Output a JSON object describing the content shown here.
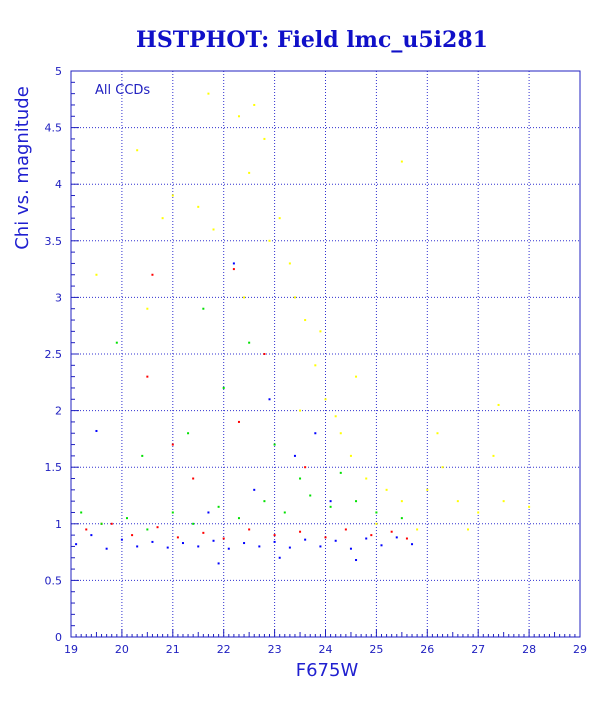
{
  "chart_data": {
    "type": "scatter",
    "title": "HSTPHOT: Field lmc_u5i281",
    "xlabel": "F675W",
    "ylabel": "Chi vs. magnitude",
    "annotation": "All CCDs",
    "xlim": [
      19,
      29
    ],
    "ylim": [
      0,
      5
    ],
    "x_ticks": [
      "19",
      "20",
      "21",
      "22",
      "23",
      "24",
      "25",
      "26",
      "27",
      "28",
      "29"
    ],
    "y_ticks": [
      "0",
      "0.5",
      "1",
      "1.5",
      "2",
      "2.5",
      "3",
      "3.5",
      "4",
      "4.5",
      "5"
    ],
    "grid": true,
    "series": [
      {
        "color": "#0000ff",
        "points": [
          [
            19.1,
            0.82
          ],
          [
            19.4,
            0.9
          ],
          [
            19.7,
            0.78
          ],
          [
            20.0,
            0.86
          ],
          [
            20.3,
            0.8
          ],
          [
            20.6,
            0.84
          ],
          [
            20.9,
            0.79
          ],
          [
            21.2,
            0.83
          ],
          [
            21.5,
            0.8
          ],
          [
            21.8,
            0.85
          ],
          [
            22.1,
            0.78
          ],
          [
            22.4,
            0.83
          ],
          [
            22.7,
            0.8
          ],
          [
            23.0,
            0.84
          ],
          [
            23.3,
            0.79
          ],
          [
            23.6,
            0.86
          ],
          [
            23.9,
            0.8
          ],
          [
            24.2,
            0.85
          ],
          [
            24.5,
            0.78
          ],
          [
            24.8,
            0.87
          ],
          [
            25.1,
            0.81
          ],
          [
            25.4,
            0.88
          ],
          [
            25.7,
            0.82
          ],
          [
            21.7,
            1.1
          ],
          [
            22.6,
            1.3
          ],
          [
            23.4,
            1.6
          ],
          [
            24.1,
            1.2
          ],
          [
            22.9,
            2.1
          ],
          [
            23.8,
            1.8
          ],
          [
            19.5,
            1.82
          ],
          [
            22.2,
            3.3
          ],
          [
            21.9,
            0.65
          ],
          [
            23.1,
            0.7
          ],
          [
            24.6,
            0.68
          ]
        ]
      },
      {
        "color": "#ff0000",
        "points": [
          [
            19.3,
            0.95
          ],
          [
            19.8,
            1.0
          ],
          [
            20.2,
            0.9
          ],
          [
            20.7,
            0.97
          ],
          [
            21.1,
            0.88
          ],
          [
            21.6,
            0.92
          ],
          [
            22.0,
            0.87
          ],
          [
            22.5,
            0.95
          ],
          [
            23.0,
            0.9
          ],
          [
            23.5,
            0.93
          ],
          [
            24.0,
            0.88
          ],
          [
            24.4,
            0.95
          ],
          [
            24.9,
            0.9
          ],
          [
            25.3,
            0.93
          ],
          [
            25.6,
            0.87
          ],
          [
            21.4,
            1.4
          ],
          [
            22.3,
            1.9
          ],
          [
            22.8,
            2.5
          ],
          [
            20.5,
            2.3
          ],
          [
            21.0,
            1.7
          ],
          [
            23.6,
            1.5
          ],
          [
            20.6,
            3.2
          ],
          [
            19.6,
            1.0
          ],
          [
            22.2,
            3.25
          ]
        ]
      },
      {
        "color": "#00e000",
        "points": [
          [
            19.2,
            1.1
          ],
          [
            19.6,
            1.0
          ],
          [
            20.1,
            1.05
          ],
          [
            20.5,
            0.95
          ],
          [
            21.0,
            1.1
          ],
          [
            21.4,
            1.0
          ],
          [
            21.9,
            1.15
          ],
          [
            22.3,
            1.05
          ],
          [
            22.8,
            1.2
          ],
          [
            23.2,
            1.1
          ],
          [
            23.7,
            1.25
          ],
          [
            24.1,
            1.15
          ],
          [
            24.6,
            1.2
          ],
          [
            25.0,
            1.1
          ],
          [
            25.5,
            1.05
          ],
          [
            21.3,
            1.8
          ],
          [
            22.0,
            2.2
          ],
          [
            23.0,
            1.7
          ],
          [
            20.4,
            1.6
          ],
          [
            24.3,
            1.45
          ],
          [
            19.9,
            2.6
          ],
          [
            21.6,
            2.9
          ],
          [
            23.5,
            1.4
          ],
          [
            22.5,
            2.6
          ]
        ]
      },
      {
        "color": "#ffff00",
        "points": [
          [
            22.6,
            4.7
          ],
          [
            22.8,
            4.4
          ],
          [
            22.3,
            4.6
          ],
          [
            22.5,
            4.1
          ],
          [
            23.1,
            3.7
          ],
          [
            23.3,
            3.3
          ],
          [
            23.4,
            3.0
          ],
          [
            22.9,
            3.5
          ],
          [
            23.6,
            2.8
          ],
          [
            23.8,
            2.4
          ],
          [
            24.0,
            2.1
          ],
          [
            24.3,
            1.8
          ],
          [
            24.5,
            1.6
          ],
          [
            24.8,
            1.4
          ],
          [
            25.2,
            1.3
          ],
          [
            25.5,
            1.2
          ],
          [
            26.0,
            1.3
          ],
          [
            26.3,
            1.5
          ],
          [
            26.6,
            1.2
          ],
          [
            27.0,
            1.1
          ],
          [
            27.3,
            1.6
          ],
          [
            27.5,
            1.2
          ],
          [
            28.0,
            1.15
          ],
          [
            26.8,
            0.95
          ],
          [
            21.5,
            3.8
          ],
          [
            21.8,
            3.6
          ],
          [
            21.0,
            3.9
          ],
          [
            20.3,
            4.3
          ],
          [
            19.5,
            3.2
          ],
          [
            23.9,
            2.7
          ],
          [
            22.4,
            3.0
          ],
          [
            24.6,
            2.3
          ],
          [
            25.0,
            1.0
          ],
          [
            25.8,
            0.95
          ],
          [
            27.4,
            2.05
          ],
          [
            26.2,
            1.8
          ],
          [
            25.5,
            4.2
          ],
          [
            20.8,
            3.7
          ],
          [
            21.7,
            4.8
          ],
          [
            20.5,
            2.9
          ],
          [
            24.2,
            1.95
          ],
          [
            23.5,
            2.0
          ]
        ]
      }
    ]
  }
}
